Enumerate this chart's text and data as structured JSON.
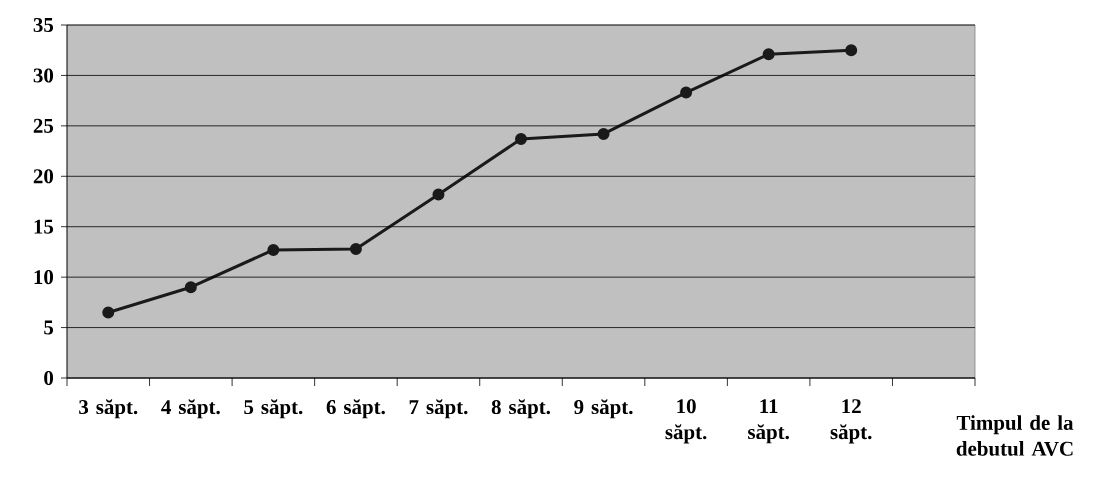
{
  "chart_data": {
    "type": "line",
    "xlabel": "Timpul de la debutul AVC",
    "categories": [
      "3 săpt.",
      "4 săpt.",
      "5 săpt.",
      "6 săpt.",
      "7 săpt.",
      "8 săpt.",
      "9 săpt.",
      "10 săpt.",
      "11 săpt.",
      "12 săpt.",
      null
    ],
    "series": [
      {
        "color": "#1a1a1a",
        "values": [
          6.5,
          9.0,
          12.7,
          12.8,
          18.2,
          23.7,
          24.2,
          28.3,
          32.1,
          32.5,
          null
        ]
      }
    ],
    "ylim": [
      0,
      35
    ],
    "yticks": [
      0,
      5,
      10,
      15,
      20,
      25,
      30,
      35
    ],
    "grid": "y",
    "marker": "circle",
    "line_style": "solid"
  }
}
